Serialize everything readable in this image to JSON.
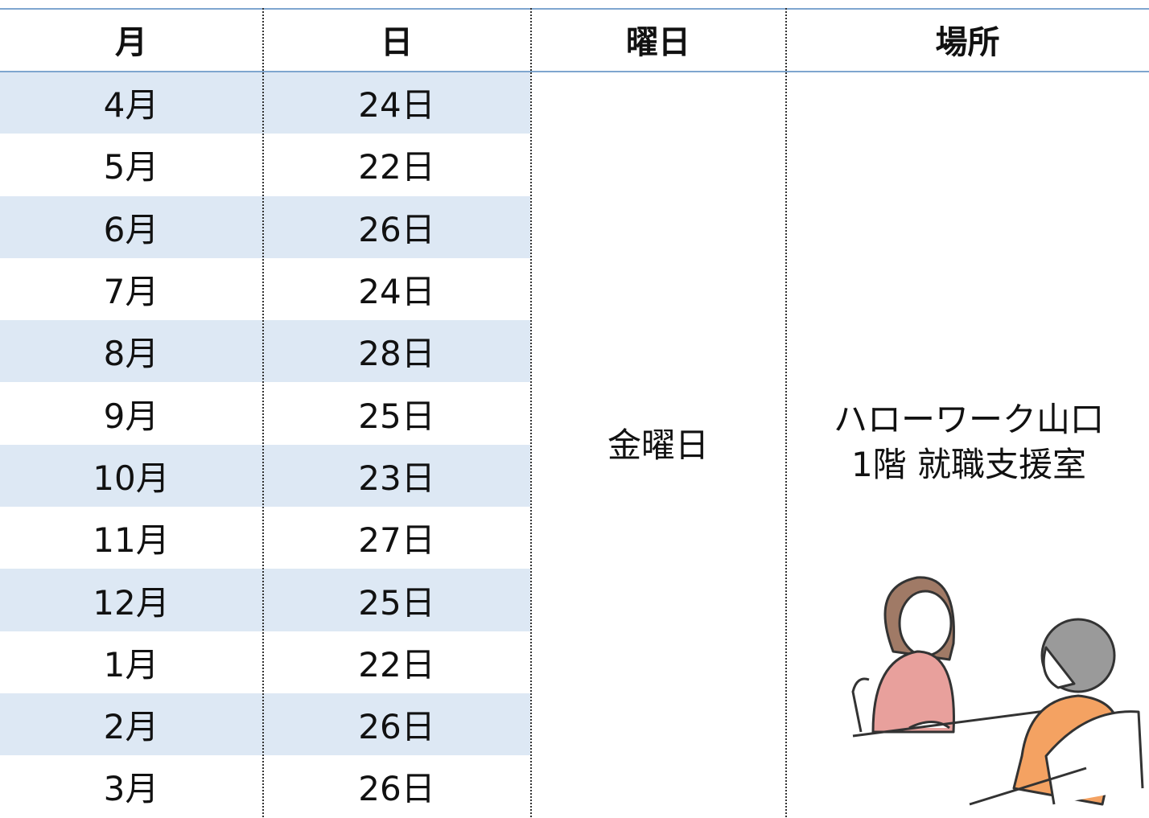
{
  "header": {
    "columns": [
      "月",
      "日",
      "曜日",
      "場所"
    ]
  },
  "rows": [
    [
      "4月",
      "24日"
    ],
    [
      "5月",
      "22日"
    ],
    [
      "6月",
      "26日"
    ],
    [
      "7月",
      "24日"
    ],
    [
      "8月",
      "28日"
    ],
    [
      "9月",
      "25日"
    ],
    [
      "10月",
      "23日"
    ],
    [
      "11月",
      "27日"
    ],
    [
      "12月",
      "25日"
    ],
    [
      "1月",
      "22日"
    ],
    [
      "2月",
      "26日"
    ],
    [
      "3月",
      "26日"
    ]
  ],
  "weekday": "金曜日",
  "location": [
    "ハローワーク山口",
    "1階 就職支援室"
  ]
}
